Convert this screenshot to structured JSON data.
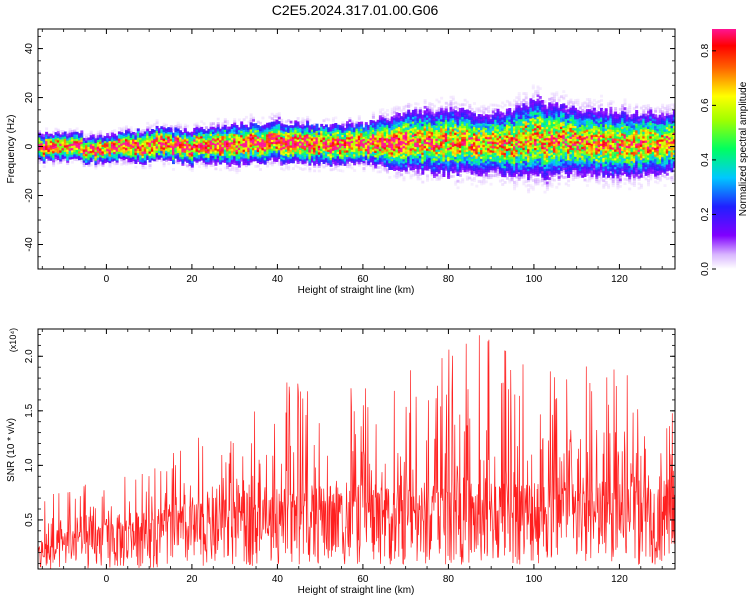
{
  "title": "C2E5.2024.317.01.00.G06",
  "colors": {
    "snr_line": "#ff2020",
    "axis": "#000000",
    "background": "#ffffff"
  },
  "chart_data": [
    {
      "type": "heatmap",
      "title": "C2E5.2024.317.01.00.G06",
      "xlabel": "Height of straight line (km)",
      "ylabel": "Frequency (Hz)",
      "xlim": [
        -16,
        133
      ],
      "ylim": [
        -50,
        48
      ],
      "x_ticks": [
        0,
        20,
        40,
        60,
        80,
        100,
        120
      ],
      "x_tick_labels": [
        "0",
        "20",
        "40",
        "60",
        "80",
        "100",
        "120"
      ],
      "y_ticks": [
        -40,
        -20,
        0,
        20,
        40
      ],
      "y_tick_labels": [
        "-40",
        "-20",
        "0",
        "20",
        "40"
      ],
      "colorbar": {
        "label": "Normalized spectral amplitude",
        "range": [
          0.0,
          0.88
        ],
        "ticks": [
          0.0,
          0.2,
          0.4,
          0.6,
          0.8
        ],
        "tick_labels": [
          "0.0",
          "0.2",
          "0.4",
          "0.6",
          "0.8"
        ],
        "colormap": "rainbow (violet-blue-cyan-green-yellow-red-magenta)"
      },
      "ridge": {
        "description": "energy band centred near 0 Hz",
        "x": [
          -16,
          0,
          10,
          20,
          30,
          40,
          50,
          60,
          70,
          80,
          90,
          100,
          110,
          120,
          133
        ],
        "center_hz": [
          0,
          -1,
          1,
          0,
          1,
          2,
          1,
          1,
          2,
          2,
          1,
          3,
          2,
          1,
          2
        ],
        "half_width_hz": [
          4,
          4,
          5,
          5,
          6,
          6,
          6,
          6,
          9,
          10,
          9,
          12,
          10,
          10,
          9
        ]
      }
    },
    {
      "type": "line",
      "xlabel": "Height of straight line (km)",
      "ylabel": "SNR (10 * v/v)",
      "y_multiplier": "(x10⁴)",
      "xlim": [
        -16,
        133
      ],
      "ylim": [
        0.05,
        2.25
      ],
      "x_ticks": [
        0,
        20,
        40,
        60,
        80,
        100,
        120
      ],
      "x_tick_labels": [
        "0",
        "20",
        "40",
        "60",
        "80",
        "100",
        "120"
      ],
      "y_ticks": [
        0.5,
        1.0,
        1.5,
        2.0
      ],
      "y_tick_labels": [
        "0.5",
        "1.0",
        "1.5",
        "2.0"
      ],
      "series": [
        {
          "color": "#ff2020",
          "x": [
            -16,
            -10,
            0,
            10,
            20,
            30,
            40,
            50,
            60,
            70,
            80,
            90,
            100,
            110,
            120,
            133
          ],
          "mean": [
            0.2,
            0.3,
            0.35,
            0.4,
            0.45,
            0.5,
            0.55,
            0.55,
            0.55,
            0.55,
            0.6,
            0.6,
            0.6,
            0.6,
            0.6,
            0.6
          ],
          "envelope_max": [
            0.75,
            0.75,
            0.95,
            1.0,
            1.25,
            1.3,
            1.75,
            1.85,
            1.7,
            1.9,
            2.2,
            2.2,
            1.9,
            2.0,
            1.9,
            2.0
          ]
        }
      ]
    }
  ]
}
